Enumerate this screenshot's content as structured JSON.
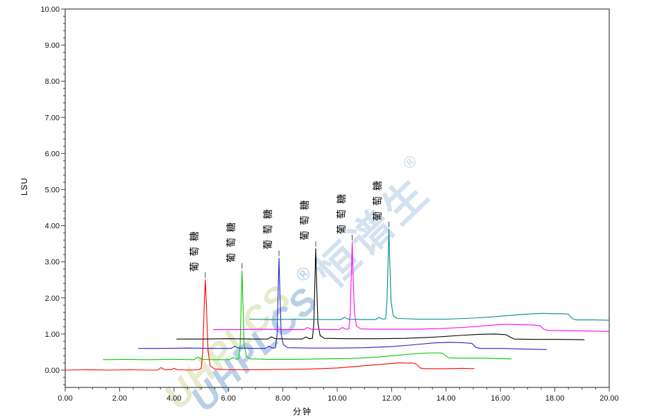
{
  "watermark": {
    "latin": "UHPLCS",
    "reg": "®",
    "cjk": "恒谱生",
    "reg2": "®"
  },
  "chart_data": {
    "type": "line",
    "title": "",
    "xlabel": "分钟",
    "ylabel": "LSU",
    "xlim": [
      0,
      20
    ],
    "ylim": [
      -0.5,
      10
    ],
    "grid": false,
    "legend": false,
    "x_major_step": 2,
    "x_minor_step": 0.5,
    "y_major_step": 1,
    "y_minor_step": 0.2,
    "x_tick_labels": [
      "0.00",
      "2.00",
      "4.00",
      "6.00",
      "8.00",
      "10.00",
      "12.00",
      "14.00",
      "16.00",
      "18.00",
      "20.00"
    ],
    "y_tick_labels": [
      "0.00",
      "1.00",
      "2.00",
      "3.00",
      "4.00",
      "5.00",
      "6.00",
      "7.00",
      "8.00",
      "9.00",
      "10.00"
    ],
    "series": [
      {
        "key": "red",
        "color": "#ff0000",
        "peak": {
          "label": "葡萄糖",
          "center": 5.15,
          "apex": 2.5
        },
        "points": [
          [
            0.0,
            0.0
          ],
          [
            0.8,
            0.01
          ],
          [
            1.6,
            0.0
          ],
          [
            2.4,
            0.01
          ],
          [
            3.1,
            0.0
          ],
          [
            3.4,
            0.0
          ],
          [
            3.52,
            0.07
          ],
          [
            3.66,
            0.01
          ],
          [
            3.9,
            0.01
          ],
          [
            4.0,
            0.05
          ],
          [
            4.12,
            0.01
          ],
          [
            4.6,
            0.0
          ],
          [
            4.9,
            0.01
          ],
          [
            5.0,
            0.05
          ],
          [
            5.06,
            0.55
          ],
          [
            5.11,
            1.8
          ],
          [
            5.15,
            2.5
          ],
          [
            5.19,
            1.8
          ],
          [
            5.25,
            0.55
          ],
          [
            5.33,
            0.12
          ],
          [
            5.5,
            0.03
          ],
          [
            6.0,
            0.01
          ],
          [
            7.0,
            0.01
          ],
          [
            8.0,
            0.02
          ],
          [
            9.0,
            0.03
          ],
          [
            10.0,
            0.06
          ],
          [
            11.0,
            0.12
          ],
          [
            11.8,
            0.17
          ],
          [
            12.3,
            0.2
          ],
          [
            12.6,
            0.19
          ],
          [
            12.75,
            0.2
          ],
          [
            12.9,
            0.17
          ],
          [
            13.05,
            0.06
          ],
          [
            13.2,
            0.04
          ],
          [
            14.0,
            0.04
          ],
          [
            14.6,
            0.05
          ],
          [
            15.03,
            0.04
          ]
        ]
      },
      {
        "key": "green",
        "color": "#00cc00",
        "peak": {
          "label": "葡萄糖",
          "center": 6.5,
          "apex": 2.75
        },
        "points": [
          [
            1.4,
            0.29
          ],
          [
            2.2,
            0.3
          ],
          [
            3.0,
            0.29
          ],
          [
            4.0,
            0.3
          ],
          [
            4.74,
            0.29
          ],
          [
            4.88,
            0.36
          ],
          [
            5.02,
            0.3
          ],
          [
            5.6,
            0.29
          ],
          [
            6.04,
            0.29
          ],
          [
            6.17,
            0.35
          ],
          [
            6.3,
            0.3
          ],
          [
            6.38,
            0.31
          ],
          [
            6.43,
            0.7
          ],
          [
            6.47,
            1.9
          ],
          [
            6.5,
            2.75
          ],
          [
            6.53,
            1.9
          ],
          [
            6.58,
            0.7
          ],
          [
            6.66,
            0.38
          ],
          [
            6.8,
            0.31
          ],
          [
            7.4,
            0.3
          ],
          [
            8.5,
            0.3
          ],
          [
            9.5,
            0.31
          ],
          [
            10.5,
            0.32
          ],
          [
            11.5,
            0.36
          ],
          [
            12.5,
            0.43
          ],
          [
            13.2,
            0.47
          ],
          [
            13.6,
            0.48
          ],
          [
            13.85,
            0.47
          ],
          [
            14.0,
            0.4
          ],
          [
            14.1,
            0.34
          ],
          [
            14.5,
            0.33
          ],
          [
            15.3,
            0.33
          ],
          [
            16.4,
            0.31
          ]
        ]
      },
      {
        "key": "blue",
        "color": "#2222cc",
        "peak": {
          "label": "葡萄糖",
          "center": 7.86,
          "apex": 3.1
        },
        "points": [
          [
            2.7,
            0.6
          ],
          [
            3.5,
            0.6
          ],
          [
            4.5,
            0.61
          ],
          [
            5.5,
            0.6
          ],
          [
            6.1,
            0.6
          ],
          [
            6.23,
            0.66
          ],
          [
            6.37,
            0.61
          ],
          [
            7.0,
            0.6
          ],
          [
            7.36,
            0.6
          ],
          [
            7.49,
            0.66
          ],
          [
            7.62,
            0.61
          ],
          [
            7.73,
            0.62
          ],
          [
            7.79,
            1.0
          ],
          [
            7.83,
            2.2
          ],
          [
            7.86,
            3.1
          ],
          [
            7.89,
            2.2
          ],
          [
            7.94,
            1.0
          ],
          [
            8.02,
            0.7
          ],
          [
            8.18,
            0.62
          ],
          [
            9.0,
            0.61
          ],
          [
            10.0,
            0.61
          ],
          [
            11.0,
            0.62
          ],
          [
            12.0,
            0.65
          ],
          [
            12.8,
            0.7
          ],
          [
            13.5,
            0.75
          ],
          [
            14.1,
            0.77
          ],
          [
            14.6,
            0.76
          ],
          [
            14.95,
            0.74
          ],
          [
            15.1,
            0.63
          ],
          [
            15.25,
            0.6
          ],
          [
            16.0,
            0.6
          ],
          [
            17.0,
            0.58
          ],
          [
            17.7,
            0.57
          ]
        ]
      },
      {
        "key": "black",
        "color": "#000000",
        "peak": {
          "label": "葡萄糖",
          "center": 9.21,
          "apex": 3.36
        },
        "points": [
          [
            4.1,
            0.86
          ],
          [
            5.0,
            0.86
          ],
          [
            6.0,
            0.87
          ],
          [
            7.0,
            0.86
          ],
          [
            7.45,
            0.86
          ],
          [
            7.58,
            0.92
          ],
          [
            7.72,
            0.87
          ],
          [
            8.3,
            0.86
          ],
          [
            8.72,
            0.86
          ],
          [
            8.85,
            0.92
          ],
          [
            8.98,
            0.87
          ],
          [
            9.09,
            0.88
          ],
          [
            9.14,
            1.3
          ],
          [
            9.18,
            2.5
          ],
          [
            9.21,
            3.36
          ],
          [
            9.24,
            2.5
          ],
          [
            9.29,
            1.3
          ],
          [
            9.37,
            0.96
          ],
          [
            9.52,
            0.88
          ],
          [
            10.3,
            0.87
          ],
          [
            11.5,
            0.87
          ],
          [
            12.5,
            0.88
          ],
          [
            13.5,
            0.91
          ],
          [
            14.5,
            0.96
          ],
          [
            15.2,
            0.99
          ],
          [
            15.8,
            1.0
          ],
          [
            16.2,
            0.98
          ],
          [
            16.35,
            0.92
          ],
          [
            16.5,
            0.86
          ],
          [
            17.3,
            0.85
          ],
          [
            18.2,
            0.85
          ],
          [
            19.08,
            0.84
          ]
        ]
      },
      {
        "key": "magenta",
        "color": "#ff00ff",
        "peak": {
          "label": "葡萄糖",
          "center": 10.55,
          "apex": 3.54
        },
        "points": [
          [
            5.45,
            1.12
          ],
          [
            6.3,
            1.12
          ],
          [
            7.2,
            1.13
          ],
          [
            8.0,
            1.12
          ],
          [
            8.77,
            1.12
          ],
          [
            8.9,
            1.18
          ],
          [
            9.04,
            1.13
          ],
          [
            9.7,
            1.12
          ],
          [
            10.06,
            1.12
          ],
          [
            10.19,
            1.18
          ],
          [
            10.32,
            1.13
          ],
          [
            10.43,
            1.14
          ],
          [
            10.48,
            1.6
          ],
          [
            10.52,
            2.7
          ],
          [
            10.55,
            3.54
          ],
          [
            10.58,
            2.7
          ],
          [
            10.63,
            1.6
          ],
          [
            10.71,
            1.22
          ],
          [
            10.86,
            1.14
          ],
          [
            11.6,
            1.13
          ],
          [
            12.8,
            1.13
          ],
          [
            13.8,
            1.15
          ],
          [
            14.8,
            1.19
          ],
          [
            15.6,
            1.24
          ],
          [
            16.2,
            1.27
          ],
          [
            16.7,
            1.26
          ],
          [
            17.2,
            1.25
          ],
          [
            17.45,
            1.23
          ],
          [
            17.6,
            1.13
          ],
          [
            17.75,
            1.1
          ],
          [
            18.6,
            1.09
          ],
          [
            19.4,
            1.08
          ],
          [
            20.0,
            1.07
          ]
        ]
      },
      {
        "key": "teal",
        "color": "#008b8b",
        "peak": {
          "label": "葡萄糖",
          "center": 11.9,
          "apex": 3.9
        },
        "points": [
          [
            6.78,
            1.41
          ],
          [
            7.6,
            1.4
          ],
          [
            8.6,
            1.41
          ],
          [
            9.5,
            1.4
          ],
          [
            10.13,
            1.4
          ],
          [
            10.26,
            1.46
          ],
          [
            10.4,
            1.41
          ],
          [
            11.0,
            1.4
          ],
          [
            11.41,
            1.4
          ],
          [
            11.54,
            1.46
          ],
          [
            11.67,
            1.41
          ],
          [
            11.78,
            1.42
          ],
          [
            11.83,
            1.9
          ],
          [
            11.87,
            3.0
          ],
          [
            11.9,
            3.9
          ],
          [
            11.93,
            3.0
          ],
          [
            11.98,
            1.9
          ],
          [
            12.06,
            1.5
          ],
          [
            12.22,
            1.43
          ],
          [
            13.0,
            1.41
          ],
          [
            14.0,
            1.41
          ],
          [
            15.0,
            1.44
          ],
          [
            15.8,
            1.48
          ],
          [
            16.6,
            1.53
          ],
          [
            17.2,
            1.56
          ],
          [
            17.6,
            1.57
          ],
          [
            17.9,
            1.56
          ],
          [
            18.2,
            1.56
          ],
          [
            18.5,
            1.55
          ],
          [
            18.65,
            1.42
          ],
          [
            18.8,
            1.39
          ],
          [
            19.4,
            1.39
          ],
          [
            20.0,
            1.38
          ]
        ]
      }
    ]
  }
}
